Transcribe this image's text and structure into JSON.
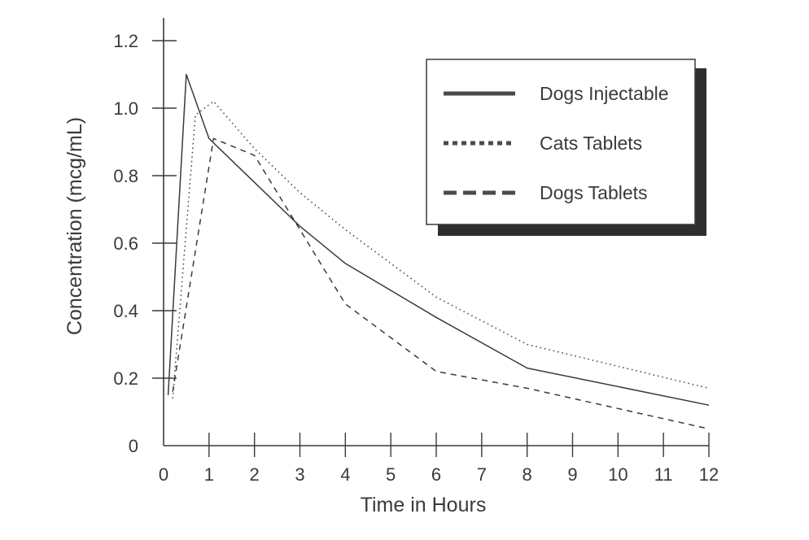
{
  "chart_data": {
    "type": "line",
    "title": "",
    "xlabel": "Time in Hours",
    "ylabel": "Concentration (mcg/mL)",
    "xlim": [
      0,
      12
    ],
    "ylim": [
      0,
      1.2
    ],
    "x_ticks": [
      {
        "value": 0,
        "label": "0"
      },
      {
        "value": 1,
        "label": "1"
      },
      {
        "value": 2,
        "label": "2"
      },
      {
        "value": 3,
        "label": "3"
      },
      {
        "value": 4,
        "label": "4"
      },
      {
        "value": 5,
        "label": "5"
      },
      {
        "value": 6,
        "label": "6"
      },
      {
        "value": 7,
        "label": "7"
      },
      {
        "value": 8,
        "label": "8"
      },
      {
        "value": 9,
        "label": "9"
      },
      {
        "value": 10,
        "label": "10"
      },
      {
        "value": 11,
        "label": "11"
      },
      {
        "value": 12,
        "label": "12"
      }
    ],
    "y_ticks": [
      {
        "value": 0,
        "label": "0"
      },
      {
        "value": 0.2,
        "label": "0.2"
      },
      {
        "value": 0.4,
        "label": "0.4"
      },
      {
        "value": 0.6,
        "label": "0.6"
      },
      {
        "value": 0.8,
        "label": "0.8"
      },
      {
        "value": 1.0,
        "label": "1.0"
      },
      {
        "value": 1.2,
        "label": "1.2"
      }
    ],
    "grid": false,
    "legend_position": "top-right",
    "series": [
      {
        "name": "Dogs Injectable",
        "style": "solid",
        "color": "#3a3a3a",
        "points": [
          [
            0.1,
            0.15
          ],
          [
            0.5,
            1.1
          ],
          [
            1.0,
            0.91
          ],
          [
            2.0,
            0.78
          ],
          [
            3.0,
            0.65
          ],
          [
            4.0,
            0.54
          ],
          [
            6.0,
            0.38
          ],
          [
            8.0,
            0.23
          ],
          [
            12.0,
            0.12
          ]
        ]
      },
      {
        "name": "Cats Tablets",
        "style": "dotted",
        "color": "#3a3a3a",
        "points": [
          [
            0.2,
            0.14
          ],
          [
            0.7,
            0.98
          ],
          [
            1.1,
            1.02
          ],
          [
            2.0,
            0.88
          ],
          [
            3.0,
            0.75
          ],
          [
            4.0,
            0.64
          ],
          [
            6.0,
            0.44
          ],
          [
            8.0,
            0.3
          ],
          [
            12.0,
            0.17
          ]
        ]
      },
      {
        "name": "Dogs Tablets",
        "style": "dashed",
        "color": "#3a3a3a",
        "points": [
          [
            0.2,
            0.16
          ],
          [
            1.1,
            0.91
          ],
          [
            2.0,
            0.86
          ],
          [
            3.0,
            0.64
          ],
          [
            4.0,
            0.42
          ],
          [
            6.0,
            0.22
          ],
          [
            8.0,
            0.17
          ],
          [
            12.0,
            0.05
          ]
        ]
      }
    ]
  }
}
